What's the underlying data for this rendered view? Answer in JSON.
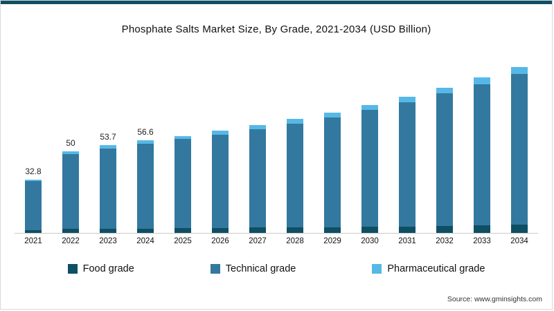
{
  "footer": {
    "source": "Source: www.gminsights.com"
  },
  "chart_data": {
    "type": "bar",
    "stacked": true,
    "title": "Phosphate Salts Market Size, By Grade, 2021-2034 (USD Billion)",
    "xlabel": "",
    "ylabel": "",
    "grid": false,
    "legend_position": "bottom",
    "ylim": [
      0,
      105
    ],
    "categories": [
      "2021",
      "2022",
      "2023",
      "2024",
      "2025",
      "2026",
      "2027",
      "2028",
      "2029",
      "2030",
      "2031",
      "2032",
      "2033",
      "2034"
    ],
    "series": [
      {
        "name": "Food grade",
        "color": "#0e4f63",
        "values": [
          1.6,
          2.4,
          2.6,
          2.7,
          2.9,
          3.0,
          3.2,
          3.4,
          3.6,
          3.8,
          4.0,
          4.3,
          4.6,
          4.9
        ]
      },
      {
        "name": "Technical grade",
        "color": "#33789f",
        "values": [
          30.0,
          45.9,
          49.3,
          52.0,
          54.6,
          57.3,
          60.4,
          63.7,
          67.3,
          71.7,
          76.1,
          81.2,
          86.6,
          92.3
        ]
      },
      {
        "name": "Pharmaceutical grade",
        "color": "#56b8e6",
        "values": [
          1.2,
          1.7,
          1.8,
          1.9,
          2.0,
          2.2,
          2.4,
          2.6,
          2.8,
          3.0,
          3.3,
          3.6,
          3.9,
          4.3
        ]
      }
    ],
    "totals": [
      32.8,
      50,
      53.7,
      56.6,
      59.5,
      62.5,
      66,
      69.7,
      73.7,
      78.5,
      83.4,
      89.1,
      95.1,
      101.5
    ],
    "bar_labels": [
      "32.8",
      "50",
      "53.7",
      "56.6",
      "",
      "",
      "",
      "",
      "",
      "",
      "",
      "",
      "",
      ""
    ]
  }
}
